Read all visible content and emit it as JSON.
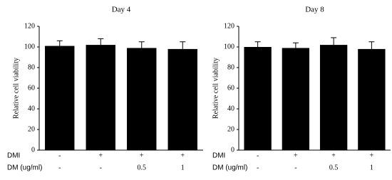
{
  "chart_data": [
    {
      "type": "bar",
      "title": "Day 4",
      "y_label": "Relative  cell viability",
      "category_rows": [
        {
          "name": "DMI",
          "labels": [
            "-",
            "+",
            "+",
            "+"
          ]
        },
        {
          "name": "DM (ug/ml)",
          "labels": [
            "-",
            "-",
            "0.5",
            "1"
          ]
        }
      ],
      "values": [
        101,
        102,
        99,
        98
      ],
      "errors": [
        5,
        6,
        6,
        7
      ],
      "color": "#000000",
      "ylim": [
        0,
        120
      ],
      "yticks": [
        0,
        20,
        40,
        60,
        80,
        100,
        120
      ]
    },
    {
      "type": "bar",
      "title": "Day 8",
      "y_label": "Relative  cell viability",
      "category_rows": [
        {
          "name": "DMI",
          "labels": [
            "-",
            "+",
            "+",
            "+"
          ]
        },
        {
          "name": "DM (ug/ml)",
          "labels": [
            "-",
            "-",
            "0.5",
            "1"
          ]
        }
      ],
      "values": [
        100,
        99,
        102,
        98
      ],
      "errors": [
        5,
        5,
        7,
        7
      ],
      "color": "#000000",
      "ylim": [
        0,
        120
      ],
      "yticks": [
        0,
        20,
        40,
        60,
        80,
        100,
        120
      ]
    }
  ]
}
